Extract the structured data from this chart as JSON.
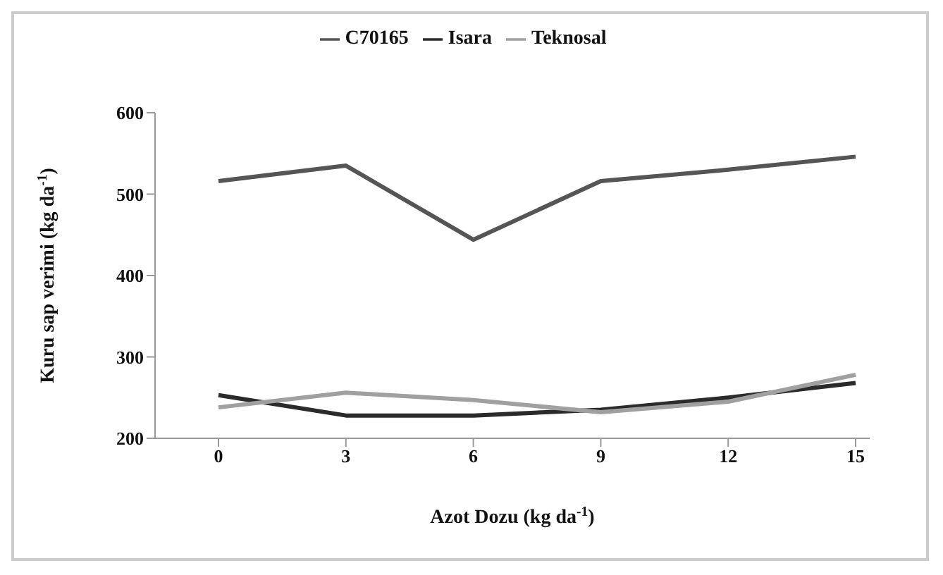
{
  "chart_data": {
    "type": "line",
    "xlabel": "Azot Dozu (kg da$^{-1}$)",
    "ylabel": "Kuru sap verimi (kg da$^{-1}$)",
    "categories": [
      "0",
      "3",
      "6",
      "9",
      "12",
      "15"
    ],
    "series": [
      {
        "name": "Isara",
        "color": "#2b2b2b",
        "values": [
          253,
          228,
          228,
          235,
          250,
          268
        ]
      },
      {
        "name": "Teknosal",
        "color": "#a0a0a0",
        "values": [
          238,
          256,
          247,
          232,
          245,
          278
        ]
      },
      {
        "name": "C70165",
        "color": "#555555",
        "values": [
          516,
          535,
          444,
          516,
          530,
          546
        ]
      }
    ],
    "ylim": [
      200,
      600
    ],
    "yticks": [
      200,
      300,
      400,
      500,
      600
    ],
    "grid": false,
    "legend": "top",
    "marker": "none",
    "line_style": "solid"
  }
}
